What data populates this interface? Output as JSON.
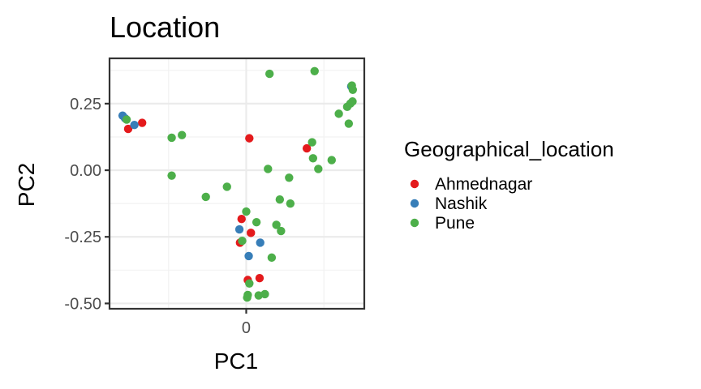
{
  "chart_data": {
    "type": "scatter",
    "title": "Location",
    "xlabel": "PC1",
    "ylabel": "PC2",
    "x_ticks": [
      {
        "value": 0,
        "label": "0"
      }
    ],
    "y_ticks": [
      {
        "value": 0.25,
        "label": "0.25"
      },
      {
        "value": 0.0,
        "label": "0.00"
      },
      {
        "value": -0.25,
        "label": "-0.25"
      },
      {
        "value": -0.5,
        "label": "-0.50"
      }
    ],
    "xlim": [
      -0.44,
      0.38
    ],
    "ylim": [
      -0.52,
      0.42
    ],
    "grid": true,
    "legend": {
      "title": "Geographical_location",
      "placement": "right"
    },
    "series": [
      {
        "name": "Ahmednagar",
        "color": "#e41a1c",
        "points": [
          [
            -0.38,
            0.155
          ],
          [
            -0.335,
            0.178
          ],
          [
            0.01,
            0.12
          ],
          [
            0.195,
            0.082
          ],
          [
            -0.015,
            -0.183
          ],
          [
            0.015,
            -0.235
          ],
          [
            -0.02,
            -0.272
          ],
          [
            0.005,
            -0.412
          ],
          [
            0.043,
            -0.405
          ]
        ]
      },
      {
        "name": "Nashik",
        "color": "#377eb8",
        "points": [
          [
            -0.398,
            0.205
          ],
          [
            -0.39,
            0.195
          ],
          [
            -0.36,
            0.17
          ],
          [
            0.338,
            0.315
          ],
          [
            -0.022,
            -0.222
          ],
          [
            0.045,
            -0.272
          ],
          [
            0.008,
            -0.322
          ]
        ]
      },
      {
        "name": "Pune",
        "color": "#4daf4a",
        "points": [
          [
            -0.385,
            0.19
          ],
          [
            -0.24,
            0.122
          ],
          [
            -0.207,
            0.132
          ],
          [
            -0.24,
            -0.02
          ],
          [
            -0.13,
            -0.1
          ],
          [
            -0.062,
            -0.062
          ],
          [
            0.075,
            0.362
          ],
          [
            0.22,
            0.372
          ],
          [
            0.34,
            0.318
          ],
          [
            0.343,
            0.302
          ],
          [
            0.298,
            0.212
          ],
          [
            0.325,
            0.238
          ],
          [
            0.335,
            0.25
          ],
          [
            0.342,
            0.258
          ],
          [
            0.33,
            0.175
          ],
          [
            0.212,
            0.105
          ],
          [
            0.215,
            0.045
          ],
          [
            0.232,
            0.005
          ],
          [
            0.275,
            0.038
          ],
          [
            0.07,
            0.005
          ],
          [
            0.138,
            -0.028
          ],
          [
            0.108,
            -0.11
          ],
          [
            0.142,
            -0.125
          ],
          [
            0.0,
            -0.155
          ],
          [
            0.033,
            -0.195
          ],
          [
            0.097,
            -0.205
          ],
          [
            0.112,
            -0.228
          ],
          [
            -0.013,
            -0.265
          ],
          [
            0.082,
            -0.328
          ],
          [
            0.01,
            -0.425
          ],
          [
            0.005,
            -0.468
          ],
          [
            0.003,
            -0.478
          ],
          [
            0.04,
            -0.47
          ],
          [
            0.06,
            -0.465
          ]
        ]
      }
    ]
  }
}
